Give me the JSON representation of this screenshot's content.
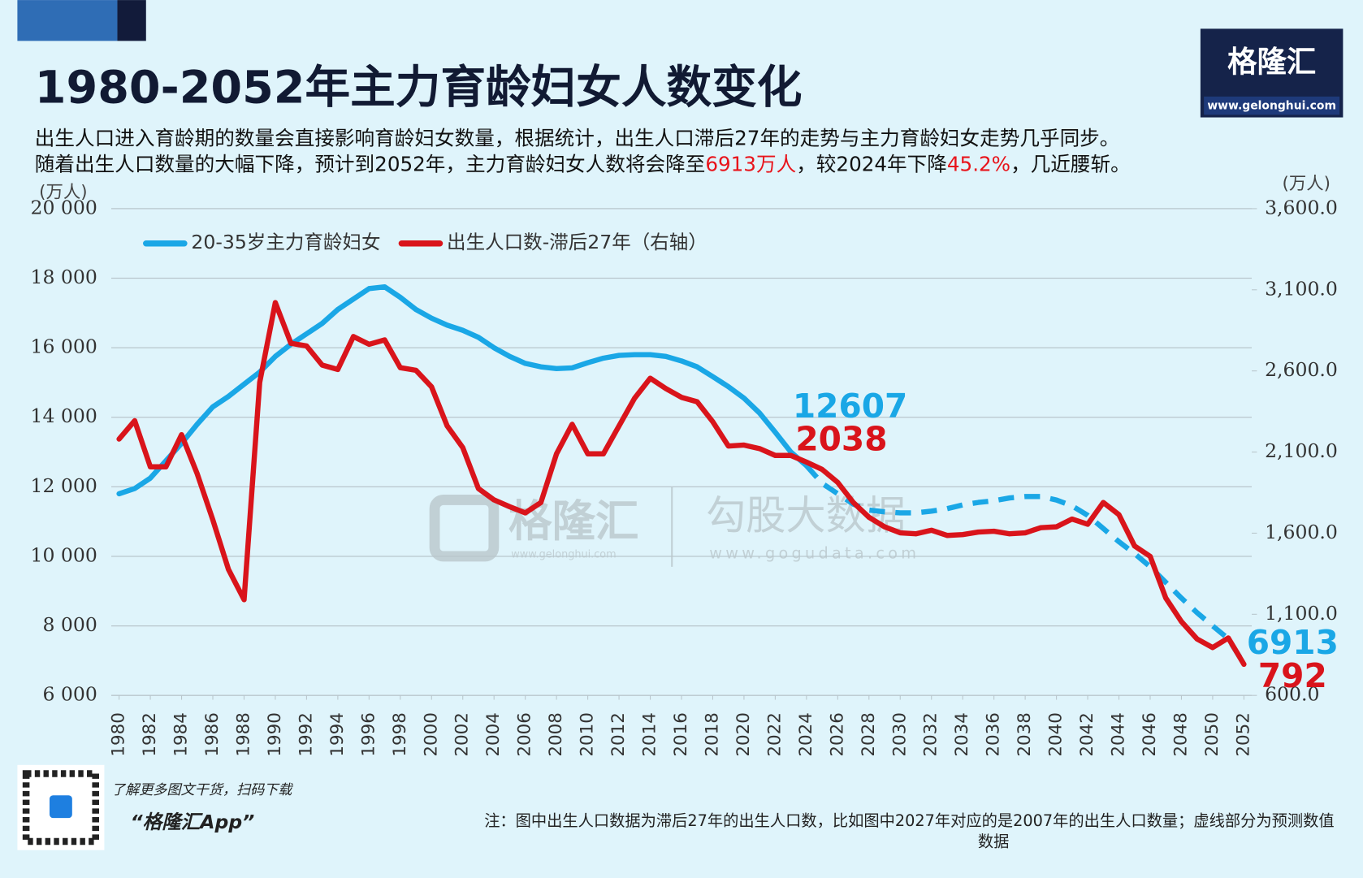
{
  "branding": {
    "logo": "格隆汇",
    "url": "www.gelonghui.com",
    "qr_caption": "了解更多图文干货，扫码下载",
    "app": "“格隆汇App”"
  },
  "watermark": {
    "name1": "格隆汇",
    "url1": "www.gelonghui.com",
    "name2": "勾股大数据",
    "url2": "www.gogudata.com"
  },
  "note": {
    "line1": "注：图中出生人口数据为滞后27年的出生人口数，比如图中2027年对应的是2007年的出生人口数量；虚线部分为预测数值",
    "line2": "数据"
  },
  "chart_data": {
    "type": "line",
    "title": "1980-2052年主力育龄妇女人数变化",
    "subtitle_lines": [
      [
        {
          "text": "出生人口进入育龄期的数量会直接影响育龄妇女数量，根据统计，出生人口滞后27年的走势与主力育龄妇女走势几乎同步。"
        }
      ],
      [
        {
          "text": "随着出生人口数量的大幅下降，预计到2052年，主力育龄妇女人数将会降至"
        },
        {
          "text": "6913万人",
          "color": "#e8141b"
        },
        {
          "text": "，较2024年下降"
        },
        {
          "text": "45.2%",
          "color": "#e8141b"
        },
        {
          "text": "，几近腰斩。"
        }
      ]
    ],
    "y_label": "(万人)",
    "y2_label": "(万人)",
    "x": [
      1980,
      1981,
      1982,
      1983,
      1984,
      1985,
      1986,
      1987,
      1988,
      1989,
      1990,
      1991,
      1992,
      1993,
      1994,
      1995,
      1996,
      1997,
      1998,
      1999,
      2000,
      2001,
      2002,
      2003,
      2004,
      2005,
      2006,
      2007,
      2008,
      2009,
      2010,
      2011,
      2012,
      2013,
      2014,
      2015,
      2016,
      2017,
      2018,
      2019,
      2020,
      2021,
      2022,
      2023,
      2024,
      2025,
      2026,
      2027,
      2028,
      2029,
      2030,
      2031,
      2032,
      2033,
      2034,
      2035,
      2036,
      2037,
      2038,
      2039,
      2040,
      2041,
      2042,
      2043,
      2044,
      2045,
      2046,
      2047,
      2048,
      2049,
      2050,
      2051,
      2052
    ],
    "xlim": [
      1980,
      2052
    ],
    "xticks": [
      1980,
      1982,
      1984,
      1986,
      1988,
      1990,
      1992,
      1994,
      1996,
      1998,
      2000,
      2002,
      2004,
      2006,
      2008,
      2010,
      2012,
      2014,
      2016,
      2018,
      2020,
      2022,
      2024,
      2026,
      2028,
      2030,
      2032,
      2034,
      2036,
      2038,
      2040,
      2042,
      2044,
      2046,
      2048,
      2050,
      2052
    ],
    "ylim": [
      6000,
      20000
    ],
    "yticks": [
      {
        "value": 6000,
        "label": "6 000"
      },
      {
        "value": 8000,
        "label": "8 000"
      },
      {
        "value": 10000,
        "label": "10 000"
      },
      {
        "value": 12000,
        "label": "12 000"
      },
      {
        "value": 14000,
        "label": "14 000"
      },
      {
        "value": 16000,
        "label": "16 000"
      },
      {
        "value": 18000,
        "label": "18 000"
      },
      {
        "value": 20000,
        "label": "20 000"
      }
    ],
    "y2lim": [
      600,
      3600
    ],
    "y2ticks": [
      {
        "value": 600,
        "label": "600.0"
      },
      {
        "value": 1100,
        "label": "1,100.0"
      },
      {
        "value": 1600,
        "label": "1,600.0"
      },
      {
        "value": 2100,
        "label": "2,100.0"
      },
      {
        "value": 2600,
        "label": "2,600.0"
      },
      {
        "value": 3100,
        "label": "3,100.0"
      },
      {
        "value": 3600,
        "label": "3,600.0"
      }
    ],
    "grid": true,
    "legend": "top-left",
    "series": [
      {
        "name": "20-35岁主力育龄妇女",
        "color": "#1aa7e6",
        "axis": "y",
        "dashed_from": 2024,
        "labeled_x": [
          2024,
          2052
        ],
        "values": [
          11800,
          11950,
          12250,
          12750,
          13250,
          13800,
          14300,
          14600,
          14950,
          15300,
          15750,
          16100,
          16400,
          16700,
          17100,
          17400,
          17700,
          17750,
          17450,
          17100,
          16850,
          16650,
          16500,
          16300,
          16000,
          15750,
          15550,
          15450,
          15400,
          15420,
          15570,
          15700,
          15780,
          15800,
          15800,
          15750,
          15620,
          15450,
          15170,
          14880,
          14550,
          14120,
          13570,
          13000,
          12607,
          12100,
          11800,
          11500,
          11330,
          11280,
          11250,
          11250,
          11300,
          11370,
          11480,
          11550,
          11600,
          11680,
          11720,
          11720,
          11620,
          11450,
          11180,
          10800,
          10420,
          10080,
          9700,
          9250,
          8800,
          8380,
          8000,
          7630,
          6913
        ]
      },
      {
        "name": "出生人口数-滞后27年（右轴）",
        "color": "#d9141b",
        "axis": "y2",
        "labeled_x": [
          2024,
          2052
        ],
        "values": [
          2180,
          2293,
          2009,
          2009,
          2207,
          1966,
          1682,
          1377,
          1190,
          2529,
          3021,
          2770,
          2754,
          2636,
          2609,
          2812,
          2764,
          2791,
          2620,
          2604,
          2502,
          2261,
          2127,
          1875,
          1805,
          1763,
          1725,
          1789,
          2089,
          2271,
          2089,
          2089,
          2261,
          2432,
          2555,
          2491,
          2437,
          2410,
          2287,
          2137,
          2143,
          2121,
          2079,
          2079,
          2038,
          1993,
          1913,
          1789,
          1698,
          1639,
          1602,
          1596,
          1618,
          1586,
          1591,
          1607,
          1612,
          1596,
          1602,
          1634,
          1639,
          1687,
          1655,
          1789,
          1714,
          1521,
          1457,
          1200,
          1055,
          948,
          895,
          954,
          792
        ]
      }
    ]
  }
}
